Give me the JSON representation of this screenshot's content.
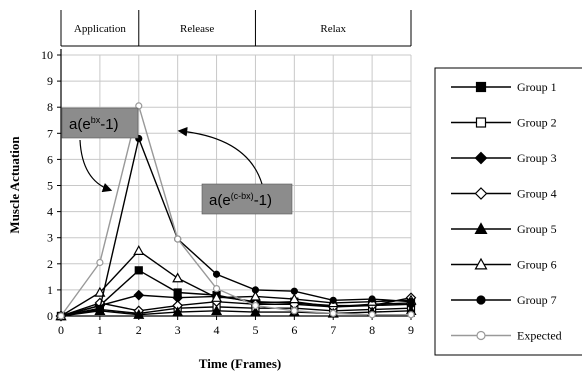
{
  "chart_data": {
    "type": "line",
    "x": [
      0,
      1,
      2,
      3,
      4,
      5,
      6,
      7,
      8,
      9
    ],
    "xlabel": "Time (Frames)",
    "ylabel": "Muscle Actuation",
    "xlim": [
      0,
      9
    ],
    "ylim": [
      0,
      10
    ],
    "xticks": [
      "0",
      "1",
      "2",
      "3",
      "4",
      "5",
      "6",
      "7",
      "8",
      "9"
    ],
    "yticks": [
      "0",
      "1",
      "2",
      "3",
      "4",
      "5",
      "6",
      "7",
      "8",
      "9",
      "10"
    ],
    "grid": true,
    "legend_position": "right",
    "phases": [
      {
        "label": "Application",
        "start": 0,
        "end": 2
      },
      {
        "label": "Release",
        "start": 2,
        "end": 5
      },
      {
        "label": "Relax",
        "start": 5,
        "end": 9
      }
    ],
    "annotations": [
      {
        "text_base": "a(e",
        "text_sup": "bx",
        "text_tail": "-1)"
      },
      {
        "text_base": "a(e",
        "text_sup": "(c-bx)",
        "text_tail": "-1)"
      }
    ],
    "series": [
      {
        "name": "Group 1",
        "marker": "filled-square",
        "color": "#000000",
        "values": [
          0,
          0.4,
          1.75,
          0.9,
          0.8,
          0.5,
          0.55,
          0.35,
          0.45,
          0.5
        ]
      },
      {
        "name": "Group 2",
        "marker": "open-square",
        "color": "#000000",
        "values": [
          0,
          0.25,
          0.1,
          0.3,
          0.35,
          0.3,
          0.3,
          0.2,
          0.25,
          0.3
        ]
      },
      {
        "name": "Group 3",
        "marker": "filled-diamond",
        "color": "#000000",
        "values": [
          0,
          0.4,
          0.8,
          0.7,
          0.75,
          0.55,
          0.5,
          0.4,
          0.4,
          0.45
        ]
      },
      {
        "name": "Group 4",
        "marker": "open-diamond",
        "color": "#000000",
        "values": [
          0,
          0.5,
          0.2,
          0.4,
          0.55,
          0.45,
          0.45,
          0.35,
          0.4,
          0.7
        ]
      },
      {
        "name": "Group 5",
        "marker": "filled-triangle",
        "color": "#000000",
        "values": [
          0,
          0.2,
          0.05,
          0.15,
          0.2,
          0.15,
          0.15,
          0.1,
          0.15,
          0.2
        ]
      },
      {
        "name": "Group 6",
        "marker": "open-triangle",
        "color": "#000000",
        "values": [
          0,
          0.9,
          2.5,
          1.45,
          0.7,
          0.75,
          0.65,
          0.5,
          0.55,
          0.6
        ]
      },
      {
        "name": "Group 7",
        "marker": "filled-circle",
        "color": "#000000",
        "values": [
          0,
          0.3,
          6.8,
          2.95,
          1.6,
          1.0,
          0.95,
          0.6,
          0.65,
          0.55
        ]
      },
      {
        "name": "Expected",
        "marker": "open-circle",
        "color": "#999999",
        "values": [
          0,
          2.05,
          8.05,
          2.95,
          1.05,
          0.4,
          0.2,
          0.1,
          0.05,
          0.05
        ]
      }
    ]
  }
}
